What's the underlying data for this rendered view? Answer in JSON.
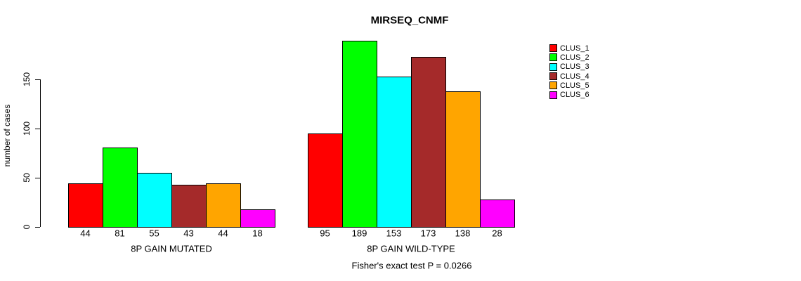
{
  "title": "MIRSEQ_CNMF",
  "chart_data": {
    "type": "bar",
    "title": "MIRSEQ_CNMF",
    "ylabel": "number of cases",
    "xlabel": "",
    "yticks": [
      0,
      50,
      100,
      150
    ],
    "ylim": [
      0,
      195
    ],
    "grid": false,
    "legend_position": "top-right",
    "series_names": [
      "CLUS_1",
      "CLUS_2",
      "CLUS_3",
      "CLUS_4",
      "CLUS_5",
      "CLUS_6"
    ],
    "series_colors": [
      "#FF0000",
      "#00FF00",
      "#00FFFF",
      "#A52A2A",
      "#FFA500",
      "#FF00FF"
    ],
    "groups": [
      {
        "label": "8P GAIN MUTATED",
        "values": [
          44,
          81,
          55,
          43,
          44,
          18
        ]
      },
      {
        "label": "8P GAIN WILD-TYPE",
        "values": [
          95,
          189,
          153,
          173,
          138,
          28
        ]
      }
    ],
    "annotation": "Fisher's exact test P = 0.0266"
  },
  "legend": {
    "items": [
      {
        "label": "CLUS_1",
        "color": "#FF0000"
      },
      {
        "label": "CLUS_2",
        "color": "#00FF00"
      },
      {
        "label": "CLUS_3",
        "color": "#00FFFF"
      },
      {
        "label": "CLUS_4",
        "color": "#A52A2A"
      },
      {
        "label": "CLUS_5",
        "color": "#FFA500"
      },
      {
        "label": "CLUS_6",
        "color": "#FF00FF"
      }
    ]
  },
  "colors": {
    "background": "#FFFFFF",
    "axis": "#000000",
    "text": "#000000"
  }
}
